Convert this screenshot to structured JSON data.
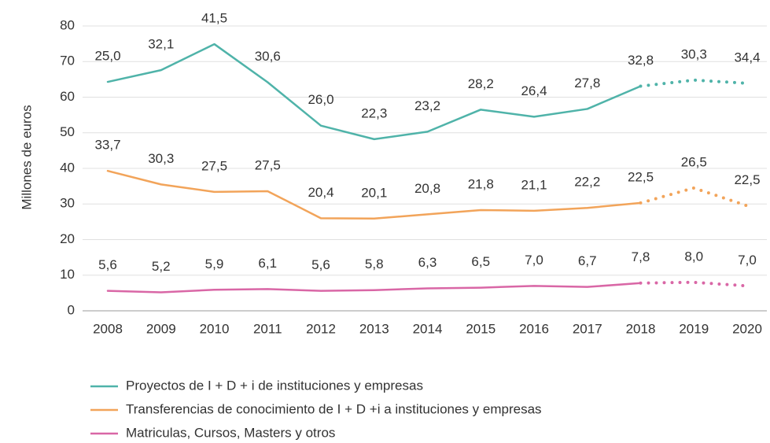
{
  "chart_data": {
    "type": "line",
    "stacked": true,
    "stack_order": "bottom-up-from-last",
    "ylabel": "Millones de euros",
    "categories": [
      "2008",
      "2009",
      "2010",
      "2011",
      "2012",
      "2013",
      "2014",
      "2015",
      "2016",
      "2017",
      "2018",
      "2019",
      "2020"
    ],
    "forecast_from": "2018",
    "series": [
      {
        "name": "Proyectos de I + D + i de instituciones y empresas",
        "color": "#4fb3a9",
        "values": [
          25.0,
          32.1,
          41.5,
          30.6,
          26.0,
          22.3,
          23.2,
          28.2,
          26.4,
          27.8,
          32.8,
          30.3,
          34.4
        ],
        "value_labels": [
          "25,0",
          "32,1",
          "41,5",
          "30,6",
          "26,0",
          "22,3",
          "23,2",
          "28,2",
          "26,4",
          "27,8",
          "32,8",
          "30,3",
          "34,4"
        ]
      },
      {
        "name": "Transferencias de conocimiento de I + D +i a instituciones y empresas",
        "color": "#f2a45a",
        "values": [
          33.7,
          30.3,
          27.5,
          27.5,
          20.4,
          20.1,
          20.8,
          21.8,
          21.1,
          22.2,
          22.5,
          26.5,
          22.5
        ],
        "value_labels": [
          "33,7",
          "30,3",
          "27,5",
          "27,5",
          "20,4",
          "20,1",
          "20,8",
          "21,8",
          "21,1",
          "22,2",
          "22,5",
          "26,5",
          "22,5"
        ]
      },
      {
        "name": "Matriculas, Cursos, Masters y otros",
        "color": "#d967a6",
        "values": [
          5.6,
          5.2,
          5.9,
          6.1,
          5.6,
          5.8,
          6.3,
          6.5,
          7.0,
          6.7,
          7.8,
          8.0,
          7.0
        ],
        "value_labels": [
          "5,6",
          "5,2",
          "5,9",
          "6,1",
          "5,6",
          "5,8",
          "6,3",
          "6,5",
          "7,0",
          "6,7",
          "7,8",
          "8,0",
          "7,0"
        ]
      }
    ],
    "ylim": [
      0,
      80
    ],
    "yticks": [
      0,
      10,
      20,
      30,
      40,
      50,
      60,
      70,
      80
    ],
    "grid": true
  }
}
